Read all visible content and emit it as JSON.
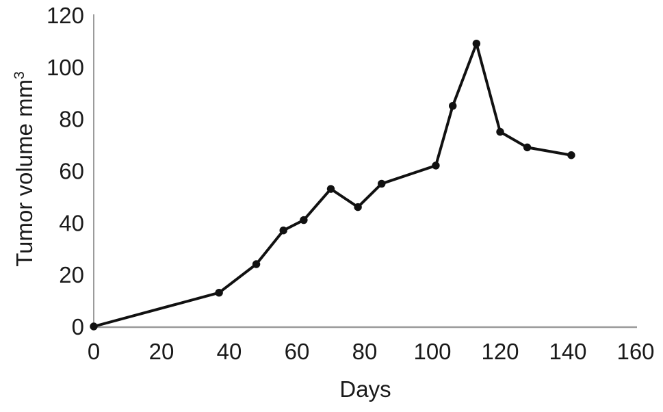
{
  "figure": {
    "background": "#ffffff",
    "axis_color": "#9b9b9b",
    "line_color": "#111111",
    "marker_color": "#111111",
    "text_color": "#1a1a1a"
  },
  "chart_data": {
    "type": "line",
    "xlabel": "Days",
    "ylabel": "Tumor volume mm³",
    "ylabel_base": "Tumor volume mm",
    "ylabel_superscript": "3",
    "x": [
      0,
      37,
      48,
      56,
      62,
      70,
      78,
      85,
      101,
      106,
      113,
      120,
      128,
      141
    ],
    "y": [
      0,
      13,
      24,
      37,
      41,
      53,
      46,
      55,
      62,
      85,
      109,
      75,
      69,
      66
    ],
    "xlim": [
      0,
      160
    ],
    "ylim": [
      0,
      120
    ],
    "x_ticks": [
      0,
      20,
      40,
      60,
      80,
      100,
      120,
      140,
      160
    ],
    "y_ticks": [
      0,
      20,
      40,
      60,
      80,
      100,
      120
    ],
    "grid": false,
    "legend": null,
    "marker": "filled-circle"
  }
}
